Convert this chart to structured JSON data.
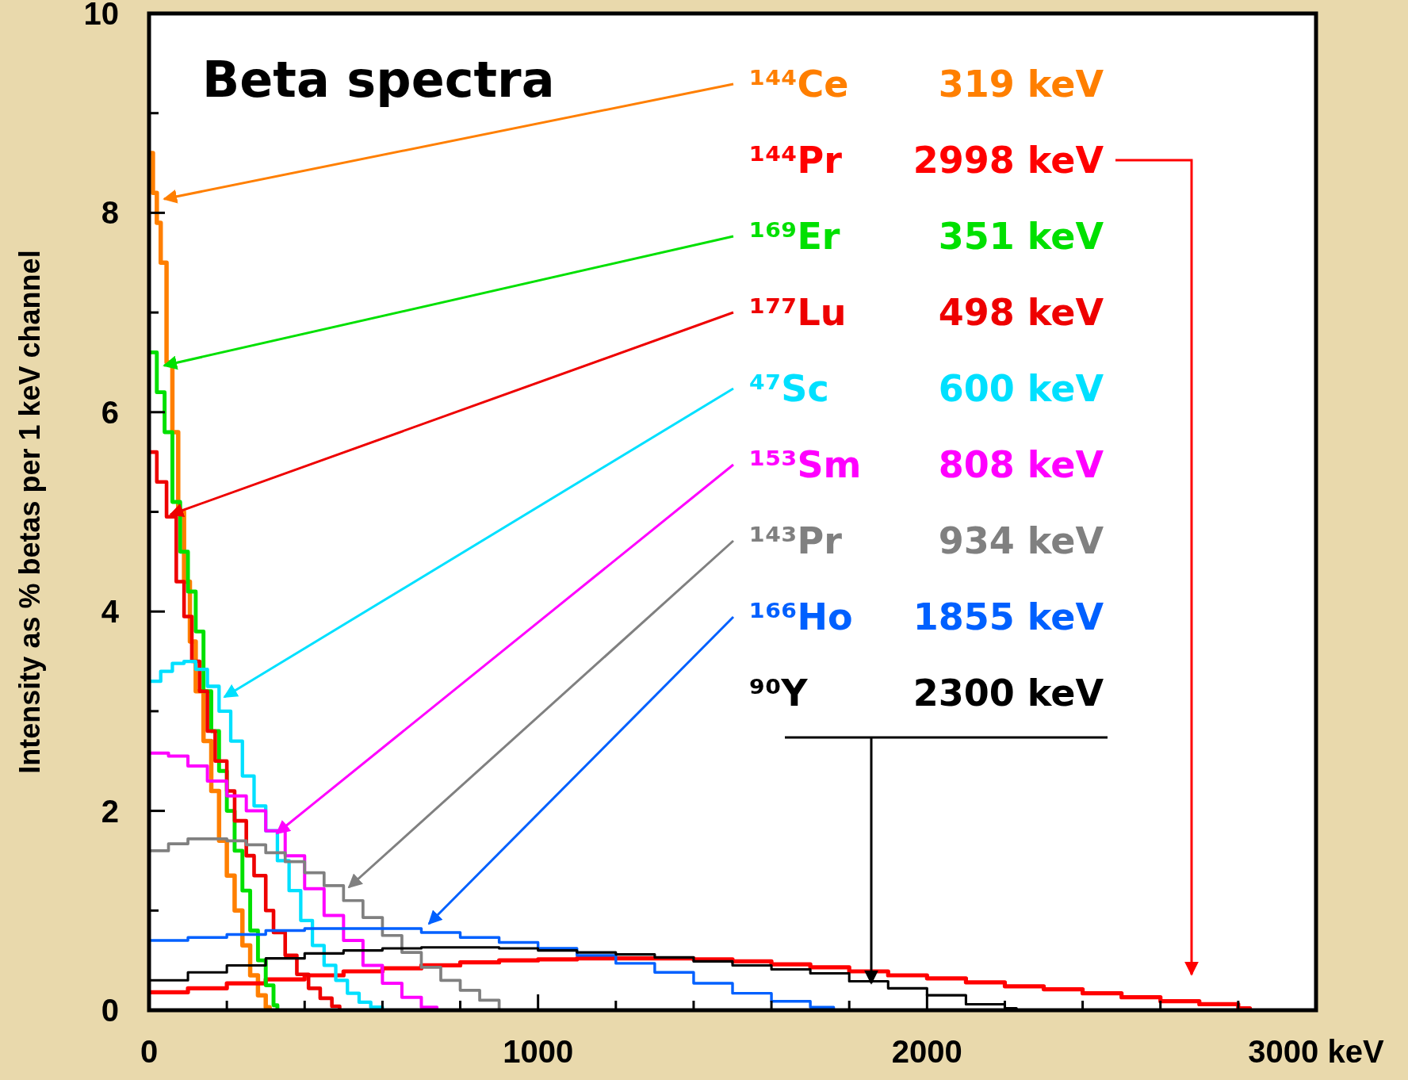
{
  "chart_data": {
    "type": "step",
    "title": "Beta spectra",
    "ylabel": "Intensity as % betas per 1 keV channel",
    "xlim": [
      0,
      3000
    ],
    "ylim": [
      0,
      10
    ],
    "xticks": [
      0,
      {
        "value": 200,
        "label": null
      },
      {
        "value": 400,
        "label": null
      },
      {
        "value": 600,
        "label": null
      },
      {
        "value": 800,
        "label": null
      },
      1000,
      {
        "value": 1200,
        "label": null
      },
      {
        "value": 1400,
        "label": null
      },
      {
        "value": 1600,
        "label": null
      },
      {
        "value": 1800,
        "label": null
      },
      2000,
      {
        "value": 2200,
        "label": null
      },
      {
        "value": 2400,
        "label": null
      },
      {
        "value": 2600,
        "label": null
      },
      {
        "value": 2800,
        "label": null
      },
      {
        "value": 3000,
        "label": "3000 keV"
      }
    ],
    "yticks": [
      0,
      {
        "value": 1,
        "label": null
      },
      2,
      {
        "value": 3,
        "label": null
      },
      4,
      {
        "value": 5,
        "label": null
      },
      6,
      {
        "value": 7,
        "label": null
      },
      8,
      {
        "value": 9,
        "label": null
      },
      10
    ],
    "series": [
      {
        "name": "¹⁴⁴Ce",
        "color": "#ff7f00",
        "x": [
          0,
          10,
          20,
          30,
          45,
          60,
          75,
          90,
          105,
          120,
          140,
          160,
          180,
          200,
          220,
          240,
          260,
          280,
          300,
          310
        ],
        "values": [
          8.6,
          8.2,
          7.9,
          7.5,
          6.5,
          5.8,
          5.0,
          4.3,
          3.7,
          3.2,
          2.7,
          2.2,
          1.7,
          1.35,
          1.0,
          0.65,
          0.35,
          0.15,
          0.03,
          0
        ]
      },
      {
        "name": "¹⁴⁴Pr",
        "color": "#ff0000",
        "x": [
          0,
          100,
          200,
          300,
          400,
          500,
          600,
          700,
          800,
          900,
          1000,
          1100,
          1200,
          1300,
          1400,
          1500,
          1600,
          1700,
          1800,
          1900,
          2000,
          2100,
          2200,
          2300,
          2400,
          2500,
          2600,
          2700,
          2800,
          2830
        ],
        "values": [
          0.18,
          0.22,
          0.27,
          0.31,
          0.35,
          0.39,
          0.42,
          0.45,
          0.48,
          0.5,
          0.51,
          0.52,
          0.52,
          0.52,
          0.51,
          0.49,
          0.46,
          0.43,
          0.39,
          0.35,
          0.32,
          0.28,
          0.24,
          0.21,
          0.17,
          0.13,
          0.09,
          0.06,
          0.02,
          0
        ]
      },
      {
        "name": "¹⁶⁹Er",
        "color": "#00e000",
        "x": [
          0,
          20,
          40,
          60,
          80,
          100,
          120,
          140,
          160,
          180,
          200,
          220,
          240,
          260,
          280,
          300,
          320,
          330
        ],
        "values": [
          6.6,
          6.2,
          5.8,
          5.1,
          4.6,
          4.2,
          3.8,
          3.2,
          2.8,
          2.4,
          2.0,
          1.6,
          1.2,
          0.8,
          0.5,
          0.25,
          0.05,
          0
        ]
      },
      {
        "name": "¹⁷⁷Lu",
        "color": "#ee0000",
        "x": [
          0,
          20,
          45,
          70,
          90,
          110,
          130,
          150,
          170,
          200,
          220,
          250,
          270,
          300,
          320,
          350,
          380,
          410,
          440,
          470,
          490
        ],
        "values": [
          5.6,
          5.3,
          4.95,
          4.3,
          3.95,
          3.5,
          3.2,
          2.8,
          2.5,
          2.2,
          1.9,
          1.55,
          1.35,
          1.0,
          0.78,
          0.55,
          0.36,
          0.22,
          0.12,
          0.04,
          0
        ]
      },
      {
        "name": "⁴⁷Sc",
        "color": "#00e0ff",
        "x": [
          0,
          15,
          30,
          60,
          90,
          120,
          150,
          180,
          210,
          240,
          270,
          300,
          330,
          360,
          390,
          420,
          450,
          480,
          510,
          540,
          570,
          600
        ],
        "values": [
          3.3,
          3.3,
          3.4,
          3.48,
          3.5,
          3.42,
          3.25,
          3.0,
          2.7,
          2.35,
          2.05,
          1.8,
          1.5,
          1.2,
          0.9,
          0.65,
          0.45,
          0.3,
          0.17,
          0.08,
          0.03,
          0
        ]
      },
      {
        "name": "¹⁵³Sm",
        "color": "#ff00ff",
        "x": [
          0,
          50,
          100,
          150,
          200,
          250,
          300,
          350,
          400,
          450,
          500,
          550,
          600,
          650,
          700,
          740
        ],
        "values": [
          2.58,
          2.55,
          2.45,
          2.3,
          2.15,
          2.0,
          1.8,
          1.55,
          1.22,
          0.95,
          0.7,
          0.45,
          0.27,
          0.13,
          0.03,
          0
        ]
      },
      {
        "name": "¹⁴³Pr",
        "color": "#808080",
        "x": [
          0,
          50,
          100,
          150,
          200,
          250,
          300,
          350,
          400,
          450,
          500,
          550,
          600,
          650,
          700,
          750,
          800,
          850,
          900
        ],
        "values": [
          1.6,
          1.67,
          1.72,
          1.72,
          1.7,
          1.66,
          1.58,
          1.49,
          1.38,
          1.25,
          1.1,
          0.93,
          0.75,
          0.58,
          0.43,
          0.3,
          0.2,
          0.1,
          0
        ]
      },
      {
        "name": "¹⁶⁶Ho",
        "color": "#0060ff",
        "x": [
          0,
          100,
          200,
          300,
          400,
          500,
          600,
          700,
          800,
          900,
          1000,
          1100,
          1200,
          1300,
          1400,
          1500,
          1600,
          1700,
          1760
        ],
        "values": [
          0.7,
          0.73,
          0.76,
          0.8,
          0.82,
          0.82,
          0.82,
          0.78,
          0.73,
          0.68,
          0.62,
          0.55,
          0.47,
          0.38,
          0.27,
          0.17,
          0.09,
          0.03,
          0
        ]
      },
      {
        "name": "⁹⁰Y",
        "color": "#000000",
        "x": [
          0,
          100,
          200,
          300,
          400,
          500,
          600,
          700,
          800,
          900,
          1000,
          1100,
          1200,
          1300,
          1400,
          1500,
          1600,
          1700,
          1800,
          1900,
          2000,
          2100,
          2200,
          2230
        ],
        "values": [
          0.3,
          0.38,
          0.45,
          0.52,
          0.57,
          0.6,
          0.62,
          0.63,
          0.63,
          0.62,
          0.6,
          0.58,
          0.56,
          0.53,
          0.49,
          0.45,
          0.41,
          0.37,
          0.29,
          0.22,
          0.15,
          0.06,
          0.02,
          0
        ]
      }
    ],
    "annotations": [
      "319 keV",
      "2998 keV",
      "351 keV",
      "498 keV",
      "600 keV",
      "808 keV",
      "934 keV",
      "1855 keV",
      "2300 keV"
    ]
  }
}
